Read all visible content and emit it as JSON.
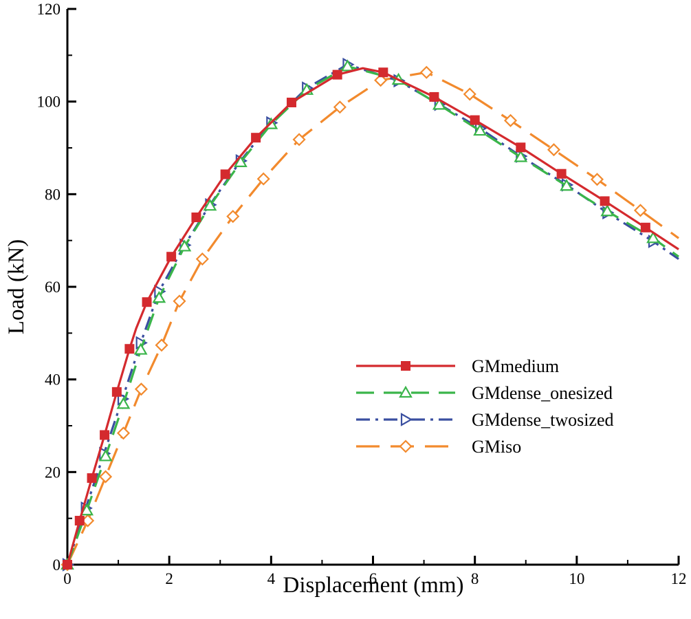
{
  "chart_data": {
    "type": "line",
    "title": "",
    "xlabel": "Displacement (mm)",
    "ylabel": "Load (kN)",
    "xlim": [
      0,
      12
    ],
    "ylim": [
      0,
      120
    ],
    "xticks": [
      0,
      2,
      4,
      6,
      8,
      10,
      12
    ],
    "yticks": [
      0,
      20,
      40,
      60,
      80,
      100,
      120
    ],
    "x_tick_labels": [
      "0",
      "2",
      "4",
      "6",
      "8",
      "10",
      "12"
    ],
    "y_tick_labels": [
      "0",
      "20",
      "40",
      "60",
      "80",
      "100",
      "120"
    ],
    "grid": false,
    "legend_position": "center-right",
    "series": [
      {
        "name": "GMmedium",
        "color": "#d42a2e",
        "line_style": "solid",
        "marker": "filled-square",
        "curve": [
          [
            0,
            0
          ],
          [
            0.24,
            9.5
          ],
          [
            0.48,
            18.7
          ],
          [
            0.73,
            28
          ],
          [
            0.97,
            37.3
          ],
          [
            1.22,
            46.6
          ],
          [
            1.35,
            51
          ],
          [
            1.56,
            56.7
          ],
          [
            2.04,
            66.5
          ],
          [
            2.53,
            75
          ],
          [
            3.1,
            84.3
          ],
          [
            3.7,
            92.2
          ],
          [
            4.4,
            99.8
          ],
          [
            5.3,
            105.8
          ],
          [
            5.8,
            107.2
          ],
          [
            6.2,
            106.3
          ],
          [
            7.2,
            101
          ],
          [
            8.0,
            96
          ],
          [
            8.9,
            90.1
          ],
          [
            9.7,
            84.4
          ],
          [
            10.55,
            78.5
          ],
          [
            11.35,
            72.8
          ],
          [
            12,
            68.1
          ]
        ],
        "markers": [
          [
            0,
            0
          ],
          [
            0.24,
            9.5
          ],
          [
            0.48,
            18.7
          ],
          [
            0.73,
            28
          ],
          [
            0.97,
            37.3
          ],
          [
            1.22,
            46.6
          ],
          [
            1.56,
            56.7
          ],
          [
            2.04,
            66.5
          ],
          [
            2.53,
            75
          ],
          [
            3.1,
            84.3
          ],
          [
            3.7,
            92.2
          ],
          [
            4.4,
            99.8
          ],
          [
            5.3,
            105.8
          ],
          [
            6.2,
            106.3
          ],
          [
            7.2,
            101
          ],
          [
            8.0,
            96
          ],
          [
            8.9,
            90.1
          ],
          [
            9.7,
            84.4
          ],
          [
            10.55,
            78.5
          ],
          [
            11.35,
            72.8
          ]
        ]
      },
      {
        "name": "GMdense_onesized",
        "color": "#3ab54a",
        "line_style": "dashed",
        "marker": "open-triangle-up",
        "curve": [
          [
            0,
            0
          ],
          [
            0.38,
            11.7
          ],
          [
            0.75,
            23.4
          ],
          [
            1.1,
            34.7
          ],
          [
            1.44,
            46.4
          ],
          [
            1.8,
            57.6
          ],
          [
            2.3,
            68.7
          ],
          [
            2.8,
            77.5
          ],
          [
            3.4,
            86.9
          ],
          [
            4.0,
            95.1
          ],
          [
            4.7,
            102.5
          ],
          [
            5.5,
            107.6
          ],
          [
            6.5,
            104.7
          ],
          [
            7.3,
            99.3
          ],
          [
            8.1,
            93.7
          ],
          [
            8.9,
            88
          ],
          [
            9.8,
            81.8
          ],
          [
            10.6,
            76.3
          ],
          [
            11.5,
            70.5
          ],
          [
            12,
            66.5
          ]
        ],
        "markers": [
          [
            0,
            0
          ],
          [
            0.38,
            11.7
          ],
          [
            0.75,
            23.4
          ],
          [
            1.1,
            34.7
          ],
          [
            1.44,
            46.4
          ],
          [
            1.8,
            57.6
          ],
          [
            2.3,
            68.7
          ],
          [
            2.8,
            77.5
          ],
          [
            3.4,
            86.9
          ],
          [
            4.0,
            95.1
          ],
          [
            4.7,
            102.5
          ],
          [
            5.5,
            107.6
          ],
          [
            6.5,
            104.7
          ],
          [
            7.3,
            99.3
          ],
          [
            8.1,
            93.7
          ],
          [
            8.9,
            88
          ],
          [
            9.8,
            81.8
          ],
          [
            10.6,
            76.3
          ],
          [
            11.5,
            70.5
          ]
        ]
      },
      {
        "name": "GMdense_twosized",
        "color": "#3a4fa0",
        "line_style": "dash-dot",
        "marker": "open-triangle-right",
        "curve": [
          [
            0,
            0
          ],
          [
            0.36,
            12.2
          ],
          [
            0.72,
            24
          ],
          [
            1.08,
            35.8
          ],
          [
            1.44,
            47.9
          ],
          [
            1.8,
            59
          ],
          [
            2.3,
            69
          ],
          [
            2.8,
            77.7
          ],
          [
            3.4,
            87.2
          ],
          [
            4.0,
            95.4
          ],
          [
            4.7,
            102.9
          ],
          [
            5.5,
            108
          ],
          [
            6.5,
            104.5
          ],
          [
            7.3,
            99.4
          ],
          [
            8.1,
            94.2
          ],
          [
            8.9,
            88.2
          ],
          [
            9.8,
            82
          ],
          [
            10.6,
            76
          ],
          [
            11.5,
            69.8
          ],
          [
            12,
            66
          ]
        ],
        "markers": [
          [
            0,
            0
          ],
          [
            0.36,
            12.2
          ],
          [
            0.72,
            24
          ],
          [
            1.08,
            35.8
          ],
          [
            1.44,
            47.9
          ],
          [
            1.8,
            59
          ],
          [
            2.3,
            69
          ],
          [
            2.8,
            77.7
          ],
          [
            3.4,
            87.2
          ],
          [
            4.0,
            95.4
          ],
          [
            4.7,
            102.9
          ],
          [
            5.5,
            108
          ],
          [
            6.5,
            104.5
          ],
          [
            7.3,
            99.4
          ],
          [
            8.1,
            94.2
          ],
          [
            8.9,
            88.2
          ],
          [
            9.8,
            82
          ],
          [
            10.6,
            76
          ],
          [
            11.5,
            69.8
          ]
        ]
      },
      {
        "name": "GMiso",
        "color": "#f28a2d",
        "line_style": "long-dash",
        "marker": "open-diamond",
        "curve": [
          [
            0,
            0
          ],
          [
            0.4,
            9.5
          ],
          [
            0.75,
            19
          ],
          [
            1.1,
            28.4
          ],
          [
            1.45,
            37.9
          ],
          [
            1.85,
            47.4
          ],
          [
            2.2,
            56.9
          ],
          [
            2.65,
            66
          ],
          [
            3.25,
            75.2
          ],
          [
            3.85,
            83.3
          ],
          [
            4.55,
            91.8
          ],
          [
            5.35,
            98.8
          ],
          [
            6.15,
            104.6
          ],
          [
            7.05,
            106.3
          ],
          [
            7.9,
            101.6
          ],
          [
            8.7,
            95.9
          ],
          [
            9.55,
            89.6
          ],
          [
            10.4,
            83.2
          ],
          [
            11.25,
            76.5
          ],
          [
            12,
            70.5
          ]
        ],
        "markers": [
          [
            0,
            0
          ],
          [
            0.4,
            9.5
          ],
          [
            0.75,
            19
          ],
          [
            1.1,
            28.4
          ],
          [
            1.45,
            37.9
          ],
          [
            1.85,
            47.4
          ],
          [
            2.2,
            56.9
          ],
          [
            2.65,
            66
          ],
          [
            3.25,
            75.2
          ],
          [
            3.85,
            83.3
          ],
          [
            4.55,
            91.8
          ],
          [
            5.35,
            98.8
          ],
          [
            6.15,
            104.6
          ],
          [
            7.05,
            106.3
          ],
          [
            7.9,
            101.6
          ],
          [
            8.7,
            95.9
          ],
          [
            9.55,
            89.6
          ],
          [
            10.4,
            83.2
          ],
          [
            11.25,
            76.5
          ]
        ]
      }
    ]
  }
}
